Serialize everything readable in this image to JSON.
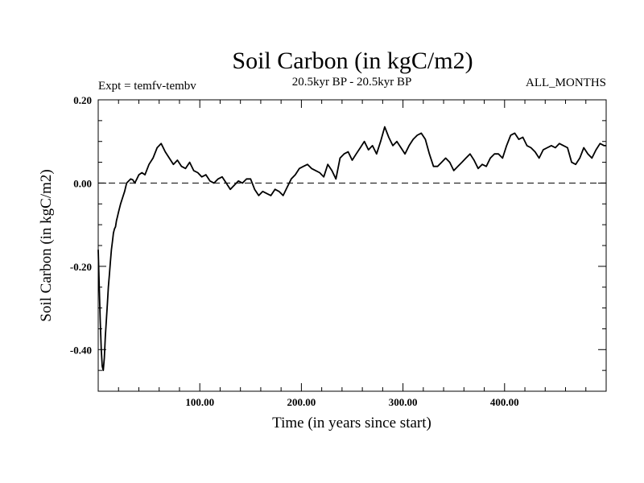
{
  "chart_data": {
    "type": "line",
    "title": "Soil Carbon (in kgC/m2)",
    "subtitle": "20.5kyr BP - 20.5kyr BP",
    "left_label": "Expt = temfv-tembv",
    "right_label": "ALL_MONTHS",
    "xlabel": "Time (in years since start)",
    "ylabel": "Soil Carbon (in kgC/m2)",
    "xlim": [
      0,
      500
    ],
    "ylim": [
      -0.5,
      0.2
    ],
    "x_ticks": [
      100,
      200,
      300,
      400
    ],
    "x_tick_labels": [
      "100.00",
      "200.00",
      "300.00",
      "400.00"
    ],
    "y_ticks": [
      -0.4,
      -0.2,
      0.0,
      0.2
    ],
    "y_tick_labels": [
      "-0.40",
      "-0.20",
      "0.00",
      "0.20"
    ],
    "reference_line": {
      "y": 0.0,
      "style": "dashed"
    },
    "series": [
      {
        "name": "temfv-tembv",
        "x": [
          0,
          1,
          2,
          3,
          4,
          5,
          6,
          7,
          8,
          9,
          10,
          11,
          12,
          13,
          14,
          15,
          16,
          17,
          18,
          19,
          20,
          22,
          24,
          26,
          28,
          30,
          32,
          34,
          36,
          38,
          40,
          43,
          46,
          50,
          54,
          58,
          62,
          66,
          70,
          74,
          78,
          82,
          86,
          90,
          94,
          98,
          102,
          106,
          110,
          114,
          118,
          122,
          126,
          130,
          134,
          138,
          142,
          146,
          150,
          154,
          158,
          162,
          166,
          170,
          174,
          178,
          182,
          186,
          190,
          194,
          198,
          202,
          206,
          210,
          214,
          218,
          222,
          226,
          230,
          234,
          238,
          242,
          246,
          250,
          254,
          258,
          262,
          266,
          270,
          274,
          278,
          282,
          286,
          290,
          294,
          298,
          302,
          306,
          310,
          314,
          318,
          322,
          326,
          330,
          334,
          338,
          342,
          346,
          350,
          354,
          358,
          362,
          366,
          370,
          374,
          378,
          382,
          386,
          390,
          394,
          398,
          402,
          406,
          410,
          414,
          418,
          422,
          426,
          430,
          434,
          438,
          442,
          446,
          450,
          454,
          458,
          462,
          466,
          470,
          474,
          478,
          482,
          486,
          490,
          494,
          498,
          500
        ],
        "y": [
          -0.16,
          -0.25,
          -0.33,
          -0.4,
          -0.44,
          -0.45,
          -0.42,
          -0.37,
          -0.33,
          -0.29,
          -0.25,
          -0.22,
          -0.19,
          -0.16,
          -0.14,
          -0.12,
          -0.11,
          -0.105,
          -0.09,
          -0.08,
          -0.07,
          -0.05,
          -0.035,
          -0.02,
          0.0,
          0.005,
          0.01,
          0.008,
          0.0,
          0.01,
          0.02,
          0.025,
          0.02,
          0.045,
          0.06,
          0.085,
          0.095,
          0.075,
          0.06,
          0.045,
          0.055,
          0.04,
          0.035,
          0.05,
          0.03,
          0.025,
          0.015,
          0.02,
          0.005,
          0.0,
          0.01,
          0.015,
          0.0,
          -0.015,
          -0.005,
          0.005,
          0.0,
          0.01,
          0.01,
          -0.015,
          -0.03,
          -0.02,
          -0.025,
          -0.03,
          -0.015,
          -0.02,
          -0.03,
          -0.01,
          0.01,
          0.02,
          0.035,
          0.04,
          0.045,
          0.035,
          0.03,
          0.025,
          0.015,
          0.045,
          0.03,
          0.01,
          0.06,
          0.07,
          0.075,
          0.055,
          0.07,
          0.085,
          0.1,
          0.08,
          0.09,
          0.07,
          0.1,
          0.135,
          0.11,
          0.09,
          0.1,
          0.085,
          0.07,
          0.09,
          0.105,
          0.115,
          0.12,
          0.105,
          0.07,
          0.04,
          0.04,
          0.05,
          0.06,
          0.05,
          0.03,
          0.04,
          0.05,
          0.06,
          0.07,
          0.055,
          0.035,
          0.045,
          0.04,
          0.06,
          0.07,
          0.07,
          0.06,
          0.09,
          0.115,
          0.12,
          0.105,
          0.11,
          0.09,
          0.085,
          0.075,
          0.06,
          0.08,
          0.085,
          0.09,
          0.085,
          0.095,
          0.09,
          0.085,
          0.05,
          0.045,
          0.06,
          0.085,
          0.07,
          0.06,
          0.08,
          0.095,
          0.09,
          0.09
        ]
      }
    ]
  }
}
